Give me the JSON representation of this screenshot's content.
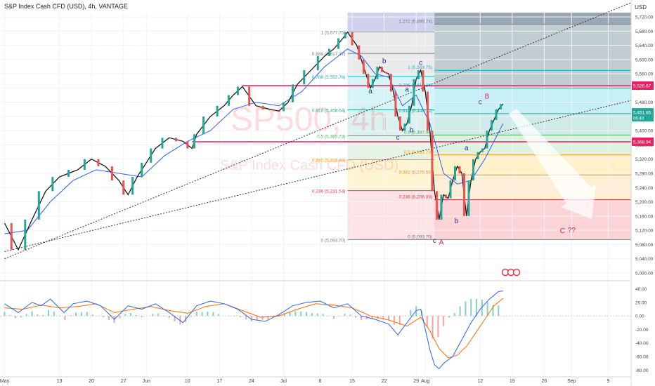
{
  "header": {
    "title": "S&P Index Cash CFD (USD), 4h, VANTAGE",
    "currency": "USD"
  },
  "watermark": {
    "symbol": "SP500, 4h",
    "name": "S&P Index Cash CFD (USD)"
  },
  "colors": {
    "up": "#26a69a",
    "down": "#ef5350",
    "ma": "#2962ff",
    "fib_1": "#787b86",
    "fib_0786": "#00bcd4",
    "fib_0618": "#26a69a",
    "fib_05": "#4caf50",
    "fib_0382": "#ff9800",
    "fib_0236": "#f23645",
    "resistance": "#e91e63",
    "macd": "#2962ff",
    "signal": "#ff6d00"
  },
  "chart_data": [
    {
      "type": "line",
      "name": "price",
      "x_ticks": [
        "May",
        "13",
        "20",
        "27",
        "Jun",
        "10",
        "17",
        "24",
        "Jul",
        "8",
        "15",
        "22",
        "29",
        "Aug",
        "12",
        "19",
        "26",
        "Sep",
        "9"
      ],
      "x_tick_values": [
        0,
        12,
        19,
        26,
        31,
        40,
        47,
        54,
        61,
        69,
        76,
        83,
        90,
        92,
        104,
        111,
        118,
        124,
        132
      ],
      "xlim": [
        -1,
        137
      ],
      "y_ticks": [
        5000,
        5040,
        5080,
        5120,
        5160,
        5200,
        5240,
        5280,
        5320,
        5360,
        5400,
        5440,
        5480,
        5520,
        5560,
        5600,
        5640,
        5680,
        5720
      ],
      "y_tick_labels": [
        "5,000.00",
        "5,040.00",
        "5,080.00",
        "5,120.00",
        "5,160.00",
        "5,200.00",
        "5,240.00",
        "5,280.00",
        "5,320.00",
        "5,360.00",
        "5,400.00",
        "5,440.00",
        "5,480.00",
        "5,520.00",
        "5,560.00",
        "5,600.00",
        "5,640.00",
        "5,680.00",
        "5,720.00"
      ],
      "ylim": [
        4982,
        5732
      ],
      "price_path": [
        [
          0,
          5140
        ],
        [
          3,
          5065
        ],
        [
          6,
          5150
        ],
        [
          9,
          5230
        ],
        [
          12,
          5270
        ],
        [
          16,
          5290
        ],
        [
          19,
          5320
        ],
        [
          22,
          5300
        ],
        [
          25,
          5260
        ],
        [
          27,
          5220
        ],
        [
          29,
          5270
        ],
        [
          31,
          5310
        ],
        [
          33,
          5350
        ],
        [
          36,
          5380
        ],
        [
          39,
          5370
        ],
        [
          41,
          5350
        ],
        [
          42,
          5390
        ],
        [
          45,
          5440
        ],
        [
          48,
          5470
        ],
        [
          50,
          5500
        ],
        [
          52,
          5524
        ],
        [
          55,
          5470
        ],
        [
          58,
          5460
        ],
        [
          60,
          5455
        ],
        [
          62,
          5480
        ],
        [
          64,
          5530
        ],
        [
          67,
          5570
        ],
        [
          70,
          5610
        ],
        [
          72,
          5630
        ],
        [
          74,
          5660
        ],
        [
          75,
          5677
        ],
        [
          77,
          5640
        ],
        [
          78,
          5600
        ],
        [
          79,
          5560
        ],
        [
          80,
          5520
        ],
        [
          81,
          5545
        ],
        [
          82,
          5580
        ],
        [
          83,
          5565
        ],
        [
          84,
          5560
        ],
        [
          85,
          5510
        ],
        [
          86,
          5440
        ],
        [
          87,
          5400
        ],
        [
          88,
          5420
        ],
        [
          89,
          5470
        ],
        [
          90,
          5545
        ],
        [
          91,
          5570
        ],
        [
          92,
          5510
        ],
        [
          93,
          5400
        ],
        [
          94,
          5230
        ],
        [
          95,
          5150
        ],
        [
          96,
          5220
        ],
        [
          97,
          5210
        ],
        [
          98,
          5260
        ],
        [
          99,
          5300
        ],
        [
          100,
          5280
        ],
        [
          101,
          5160
        ],
        [
          102,
          5260
        ],
        [
          103,
          5320
        ],
        [
          104,
          5340
        ],
        [
          105,
          5350
        ],
        [
          106,
          5400
        ],
        [
          107,
          5430
        ],
        [
          108,
          5460
        ],
        [
          109,
          5475
        ]
      ],
      "ma_path": [
        [
          0,
          5110
        ],
        [
          5,
          5120
        ],
        [
          10,
          5200
        ],
        [
          15,
          5260
        ],
        [
          20,
          5290
        ],
        [
          25,
          5280
        ],
        [
          30,
          5270
        ],
        [
          35,
          5330
        ],
        [
          40,
          5370
        ],
        [
          45,
          5400
        ],
        [
          50,
          5460
        ],
        [
          55,
          5480
        ],
        [
          60,
          5470
        ],
        [
          65,
          5510
        ],
        [
          70,
          5580
        ],
        [
          75,
          5630
        ],
        [
          78,
          5610
        ],
        [
          81,
          5560
        ],
        [
          84,
          5550
        ],
        [
          87,
          5470
        ],
        [
          90,
          5500
        ],
        [
          93,
          5420
        ],
        [
          96,
          5280
        ],
        [
          99,
          5250
        ],
        [
          102,
          5260
        ],
        [
          105,
          5320
        ],
        [
          109,
          5420
        ]
      ],
      "fib_left": [
        [
          5677.75,
          "1 (5,677.75)"
        ],
        [
          5617.37,
          "0.886 (5,617.37)"
        ],
        [
          5552.76,
          "0.786 (5,552.76)"
        ],
        [
          5458.64,
          "0.618 (5,458.64)"
        ],
        [
          5385.73,
          "0.5 (5,385.73)"
        ],
        [
          5318.84,
          "0.382 (5,318.84)"
        ],
        [
          5231.54,
          "0.236 (5,231.54)"
        ],
        [
          5093.7,
          "0 (5,093.70)"
        ]
      ],
      "fib_right": [
        [
          5699.74,
          "1.272 (5,699.74)"
        ],
        [
          5569.75,
          "1 (5,569.75)"
        ],
        [
          5519.44,
          "0.786 (5,519.44)"
        ],
        [
          5448.13,
          "0.618 (5,448.13)"
        ],
        [
          5387.9,
          "0.5 (5,387.90)"
        ],
        [
          5331.73,
          "0.5 (5,331.73)"
        ],
        [
          5275.55,
          "0.382 (5,275.55)"
        ],
        [
          5206.03,
          "0.236 (5,206.03)"
        ],
        [
          5093.7,
          "0 (5,093.70)"
        ]
      ],
      "resistance_levels": [
        5526.67,
        5368.94
      ],
      "price_labels": [
        {
          "label": "5,526.67",
          "value": 5526.67,
          "color": "#e91e63"
        },
        {
          "label": "5,451.65",
          "sub": "06:40",
          "value": 5451.65,
          "color": "#26a69a"
        },
        {
          "label": "5,368.94",
          "value": 5368.94,
          "color": "#e91e63"
        }
      ],
      "wave_labels": [
        {
          "t": "a",
          "x": 80,
          "y": 5505,
          "c": "#1e3a8a"
        },
        {
          "t": "b",
          "x": 83,
          "y": 5590,
          "c": "#1e3a8a"
        },
        {
          "t": "c",
          "x": 86,
          "y": 5375,
          "c": "#1e3a8a"
        },
        {
          "t": "a",
          "x": 88,
          "y": 5510,
          "c": "#1e3a8a"
        },
        {
          "t": "b",
          "x": 89,
          "y": 5395,
          "c": "#1e3a8a"
        },
        {
          "t": "c",
          "x": 91,
          "y": 5585,
          "c": "#1e3a8a"
        },
        {
          "t": "c",
          "x": 94,
          "y": 5085,
          "c": "#1e3a8a"
        },
        {
          "t": "A",
          "x": 95.5,
          "y": 5080,
          "c": "#e91e63"
        },
        {
          "t": "a",
          "x": 101,
          "y": 5345,
          "c": "#1e3a8a"
        },
        {
          "t": "b",
          "x": 98.8,
          "y": 5140,
          "c": "#1e3a8a"
        },
        {
          "t": "c",
          "x": 104,
          "y": 5474,
          "c": "#1e3a8a"
        },
        {
          "t": "B",
          "x": 105.5,
          "y": 5490,
          "c": "#e91e63"
        },
        {
          "t": "C",
          "x": 122,
          "y": 5112,
          "c": "#e91e63"
        },
        {
          "t": "??",
          "x": 124,
          "y": 5114,
          "c": "#e91e63"
        }
      ]
    },
    {
      "type": "line",
      "name": "macd",
      "y_ticks": [
        40,
        20,
        0,
        -20,
        -40,
        -60,
        -80
      ],
      "y_tick_labels": [
        "40.00",
        "20.00",
        "0.00",
        "-20.00",
        "-40.00",
        "-60.00",
        "-80.00"
      ],
      "ylim": [
        -88,
        50
      ],
      "macd_path": [
        [
          0,
          18
        ],
        [
          3,
          5
        ],
        [
          6,
          20
        ],
        [
          8,
          15
        ],
        [
          10,
          25
        ],
        [
          13,
          5
        ],
        [
          15,
          18
        ],
        [
          18,
          22
        ],
        [
          21,
          15
        ],
        [
          24,
          -5
        ],
        [
          27,
          15
        ],
        [
          30,
          10
        ],
        [
          33,
          18
        ],
        [
          36,
          5
        ],
        [
          39,
          -10
        ],
        [
          42,
          15
        ],
        [
          45,
          22
        ],
        [
          48,
          18
        ],
        [
          51,
          10
        ],
        [
          54,
          -5
        ],
        [
          57,
          -8
        ],
        [
          60,
          2
        ],
        [
          63,
          15
        ],
        [
          66,
          20
        ],
        [
          69,
          22
        ],
        [
          72,
          12
        ],
        [
          75,
          18
        ],
        [
          78,
          0
        ],
        [
          81,
          -5
        ],
        [
          84,
          -12
        ],
        [
          86,
          -28
        ],
        [
          88,
          -10
        ],
        [
          90,
          8
        ],
        [
          91,
          10
        ],
        [
          92,
          -20
        ],
        [
          93,
          -50
        ],
        [
          94,
          -72
        ],
        [
          95,
          -78
        ],
        [
          96,
          -70
        ],
        [
          98,
          -60
        ],
        [
          100,
          -35
        ],
        [
          102,
          -10
        ],
        [
          104,
          10
        ],
        [
          106,
          25
        ],
        [
          108,
          36
        ],
        [
          109,
          37
        ]
      ],
      "signal_path": [
        [
          0,
          12
        ],
        [
          4,
          10
        ],
        [
          8,
          16
        ],
        [
          12,
          12
        ],
        [
          16,
          14
        ],
        [
          20,
          18
        ],
        [
          24,
          5
        ],
        [
          28,
          10
        ],
        [
          32,
          14
        ],
        [
          36,
          8
        ],
        [
          40,
          4
        ],
        [
          44,
          14
        ],
        [
          48,
          18
        ],
        [
          52,
          8
        ],
        [
          56,
          -2
        ],
        [
          60,
          0
        ],
        [
          64,
          10
        ],
        [
          68,
          18
        ],
        [
          72,
          16
        ],
        [
          76,
          12
        ],
        [
          80,
          0
        ],
        [
          84,
          -6
        ],
        [
          88,
          -15
        ],
        [
          91,
          -2
        ],
        [
          93,
          -22
        ],
        [
          95,
          -48
        ],
        [
          97,
          -62
        ],
        [
          99,
          -58
        ],
        [
          101,
          -45
        ],
        [
          103,
          -25
        ],
        [
          105,
          -5
        ],
        [
          107,
          15
        ],
        [
          109,
          26
        ]
      ]
    }
  ]
}
